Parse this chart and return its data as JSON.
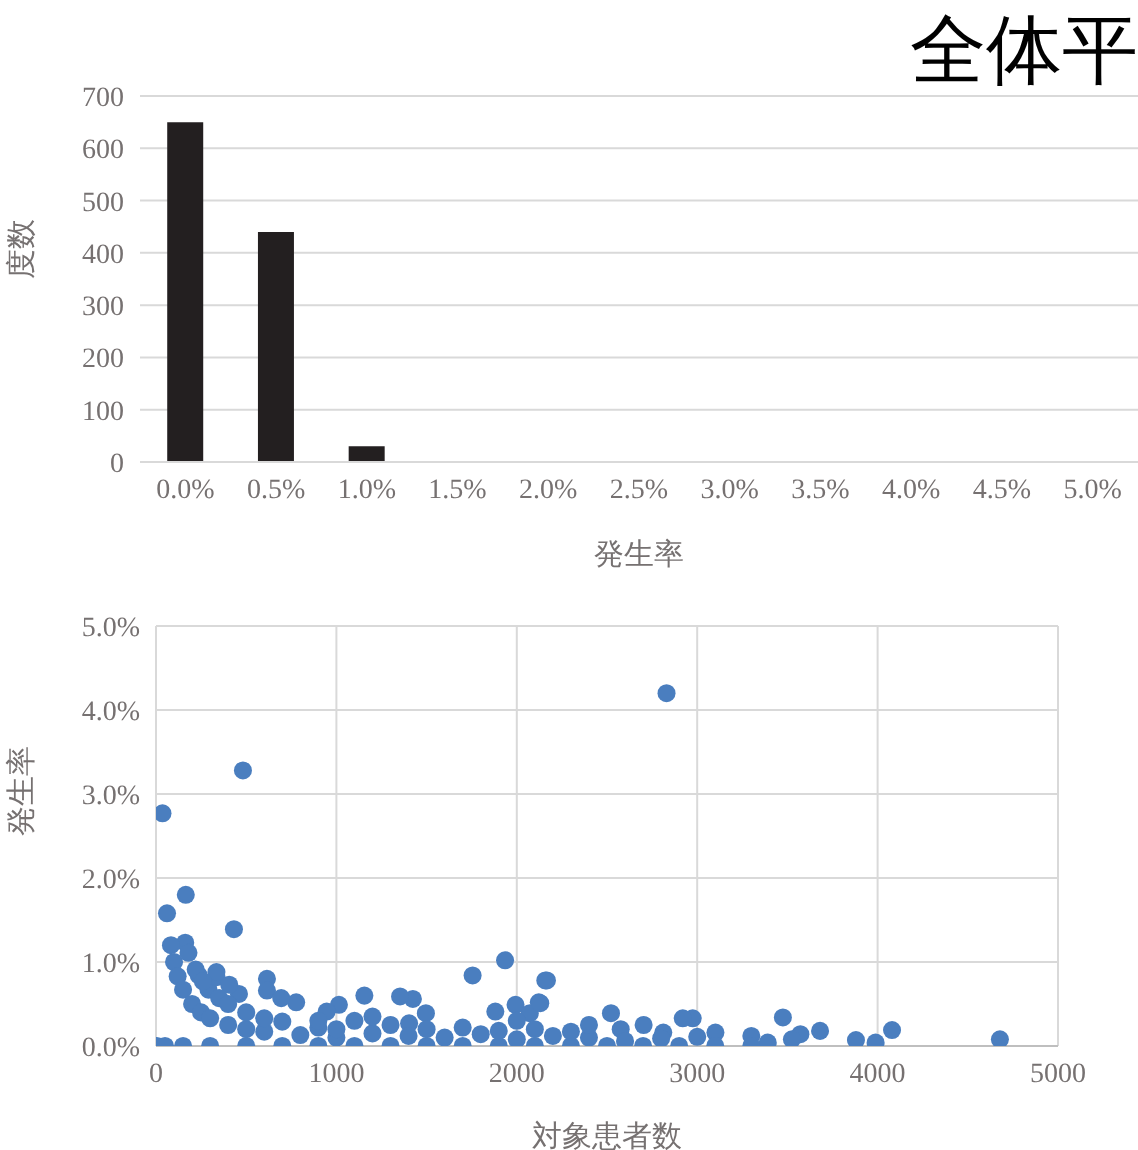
{
  "chart_data": [
    {
      "type": "bar",
      "title": "全体平",
      "xlabel": "発生率",
      "ylabel": "度数",
      "categories": [
        "0.0%",
        "0.5%",
        "1.0%",
        "1.5%",
        "2.0%",
        "2.5%",
        "3.0%",
        "3.5%",
        "4.0%",
        "4.5%",
        "5.0%"
      ],
      "values": [
        650,
        440,
        30,
        2,
        0,
        0,
        0,
        0,
        0,
        0,
        0
      ],
      "color": "#231f20",
      "ylim": [
        0,
        700
      ],
      "yticks": [
        0,
        100,
        200,
        300,
        400,
        500,
        600,
        700
      ],
      "grid": "y"
    },
    {
      "type": "scatter",
      "xlabel": "対象患者数",
      "ylabel": "発生率",
      "color": "#4a7ebf",
      "marker": "circle",
      "grid": true,
      "xlim": [
        0,
        5000
      ],
      "xticks": [
        0,
        1000,
        2000,
        3000,
        4000,
        5000
      ],
      "ylim": [
        0,
        5
      ],
      "yticks": [
        {
          "value": 0,
          "label": "0.0%"
        },
        {
          "value": 1,
          "label": "1.0%"
        },
        {
          "value": 2,
          "label": "2.0%"
        },
        {
          "value": 3,
          "label": "3.0%"
        },
        {
          "value": 4,
          "label": "4.0%"
        },
        {
          "value": 5,
          "label": "5.0%"
        }
      ],
      "x": [
        482,
        36,
        165,
        61,
        432,
        162,
        1935,
        1755,
        2158,
        615,
        615,
        1155,
        1424,
        1353,
        1993,
        2122,
        1881,
        2072,
        1403,
        1496,
        1014,
        777,
        694,
        460,
        291,
        237,
        335,
        335,
        406,
        946,
        2830,
        4678,
        4080,
        3989,
        3880,
        3681,
        3572,
        3525,
        3475,
        3391,
        3300,
        3101,
        2975,
        2920,
        2703,
        2522,
        2576,
        2167,
        2130,
        2812,
        83,
        100,
        120,
        150,
        200,
        250,
        300,
        400,
        500,
        600,
        800,
        1000,
        180,
        220,
        260,
        350,
        400,
        500,
        600,
        700,
        900,
        5,
        50,
        150,
        300,
        500,
        700,
        900,
        1100,
        1300,
        1500,
        1700,
        1900,
        2100,
        2300,
        2500,
        2700,
        2900,
        3100,
        3300,
        1200,
        1400,
        1600,
        1800,
        2000,
        2200,
        2400,
        2600,
        2800,
        3000,
        1100,
        1300,
        1500,
        1700,
        1900,
        2100,
        2300,
        1000,
        900,
        1200,
        2400,
        2000
      ],
      "values": [
        3.28,
        2.77,
        1.8,
        1.58,
        1.39,
        1.23,
        1.02,
        0.84,
        0.78,
        0.8,
        0.66,
        0.6,
        0.56,
        0.59,
        0.49,
        0.52,
        0.41,
        0.39,
        0.27,
        0.39,
        0.49,
        0.52,
        0.57,
        0.62,
        0.67,
        0.84,
        0.82,
        0.88,
        0.73,
        0.41,
        4.2,
        0.08,
        0.19,
        0.04,
        0.07,
        0.18,
        0.14,
        0.08,
        0.34,
        0.04,
        0.12,
        0.16,
        0.33,
        0.33,
        0.25,
        0.39,
        0.2,
        0.78,
        0.51,
        0.16,
        1.2,
        1,
        0.83,
        0.67,
        0.5,
        0.4,
        0.33,
        0.25,
        0.2,
        0.17,
        0.13,
        0.1,
        1.11,
        0.91,
        0.77,
        0.57,
        0.5,
        0.4,
        0.33,
        0.29,
        0.22,
        0,
        0,
        0,
        0,
        0,
        0,
        0,
        0,
        0,
        0,
        0,
        0,
        0,
        0,
        0,
        0,
        0,
        0,
        0,
        0.15,
        0.12,
        0.1,
        0.14,
        0.08,
        0.12,
        0.1,
        0.06,
        0.09,
        0.11,
        0.3,
        0.25,
        0.2,
        0.22,
        0.18,
        0.2,
        0.17,
        0.2,
        0.3,
        0.35,
        0.25,
        0.3
      ]
    }
  ]
}
